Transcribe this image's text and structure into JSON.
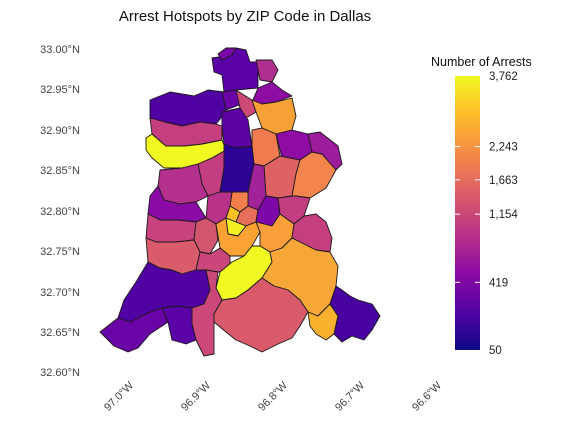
{
  "title": "Arrest Hotspots by ZIP Code in Dallas",
  "y_axis": {
    "ticks": [
      "33.00°N",
      "32.95°N",
      "32.90°N",
      "32.85°N",
      "32.80°N",
      "32.75°N",
      "32.70°N",
      "32.65°N",
      "32.60°N"
    ],
    "values": [
      33.0,
      32.95,
      32.9,
      32.85,
      32.8,
      32.75,
      32.7,
      32.65,
      32.6
    ]
  },
  "x_axis": {
    "ticks": [
      "97.0°W",
      "96.9°W",
      "96.8°W",
      "96.7°W",
      "96.6°W"
    ],
    "values": [
      -97.0,
      -96.9,
      -96.8,
      -96.7,
      -96.6
    ]
  },
  "legend": {
    "title": "Number of Arrests",
    "min": 50,
    "max": 3762,
    "ticks": [
      "3,762",
      "2,243",
      "1,663",
      "1,154",
      "419",
      "50"
    ],
    "tick_values": [
      3762,
      2243,
      1663,
      1154,
      419,
      50
    ],
    "colormap": "plasma",
    "colors": [
      "#0d0887",
      "#5302a3",
      "#8b0aa5",
      "#b83289",
      "#db5c68",
      "#f48849",
      "#febd2a",
      "#f0f921"
    ]
  },
  "map_outline_color": "#1a1a1a"
}
